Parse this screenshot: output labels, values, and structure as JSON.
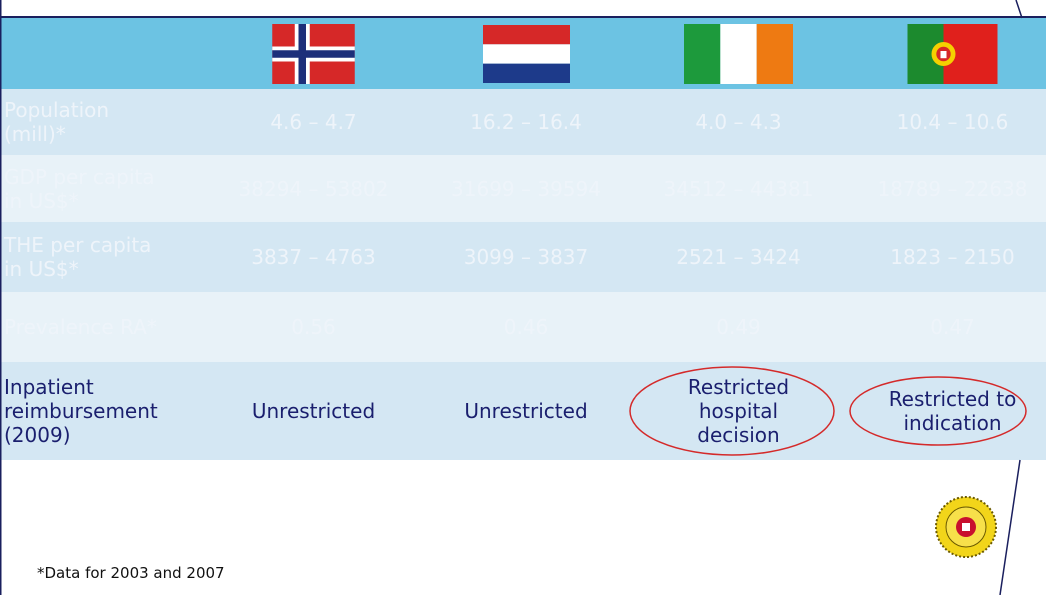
{
  "table": {
    "rows": [
      {
        "label": [
          "Population",
          "(mill)*"
        ],
        "cells": [
          "4.6 – 4.7",
          "16.2 – 16.4",
          "4.0 – 4.3",
          "10.4 – 10.6"
        ]
      },
      {
        "label": [
          "GDP per capita",
          "in US$*"
        ],
        "cells": [
          "38294 – 53802",
          "31699 – 39594",
          "34512 – 44381",
          "18789 – 22638"
        ]
      },
      {
        "label": [
          "THE per capita",
          "in US$*"
        ],
        "cells": [
          "3837 – 4763",
          "3099 – 3837",
          "2521 – 3424",
          "1823 – 2150"
        ]
      },
      {
        "label": [
          "Prevalence RA*"
        ],
        "cells": [
          "0.56",
          "0.46",
          "0.49",
          "0.47"
        ]
      },
      {
        "label": [
          "Inpatient",
          "reimbursement",
          "(2009)"
        ],
        "cells": [
          [
            "Unrestricted"
          ],
          [
            "Unrestricted"
          ],
          [
            "Restricted",
            "hospital",
            "decision"
          ],
          [
            "Restricted to",
            "indication"
          ]
        ]
      }
    ]
  },
  "footnote": "*Data for 2003 and 2007"
}
